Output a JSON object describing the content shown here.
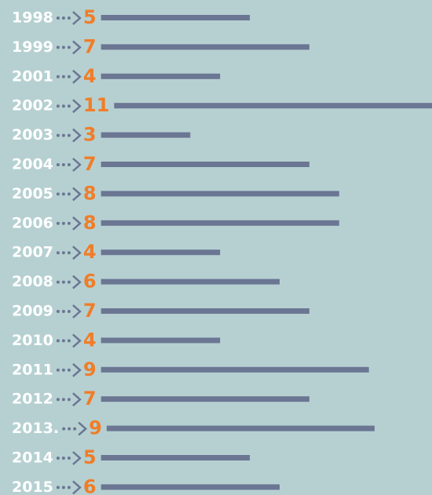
{
  "chart_data": {
    "type": "bar",
    "orientation": "horizontal",
    "categories": [
      "1998",
      "1999",
      "2001",
      "2002",
      "2003",
      "2004",
      "2005",
      "2006",
      "2007",
      "2008",
      "2009",
      "2010",
      "2011",
      "2012",
      "2013.",
      "2014",
      "2015"
    ],
    "values": [
      5,
      7,
      4,
      11,
      3,
      7,
      8,
      8,
      4,
      6,
      7,
      4,
      9,
      7,
      9,
      5,
      6
    ],
    "color": "#6b7693",
    "label_color": "#f07d28"
  }
}
